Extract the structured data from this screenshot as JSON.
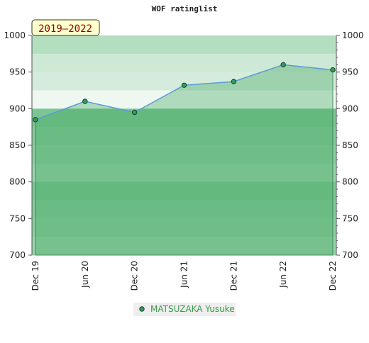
{
  "chart_data": {
    "type": "area",
    "title": "WOF ratinglist",
    "badge": "2019–2022",
    "categories": [
      "Dec 19",
      "Jun 20",
      "Dec 20",
      "Jun 21",
      "Dec 21",
      "Jun 22",
      "Dec 22"
    ],
    "series": [
      {
        "name": "MATSUZAKA Yusuke",
        "color": "#5b9bd5",
        "values": [
          885,
          910,
          895,
          932,
          937,
          960,
          953
        ]
      }
    ],
    "ylim": [
      700,
      1000
    ],
    "yticks": [
      700,
      750,
      800,
      850,
      900,
      950,
      1000
    ],
    "y2lim": [
      700,
      1000
    ],
    "y2ticks": [
      700,
      750,
      800,
      850,
      900,
      950,
      1000
    ]
  }
}
